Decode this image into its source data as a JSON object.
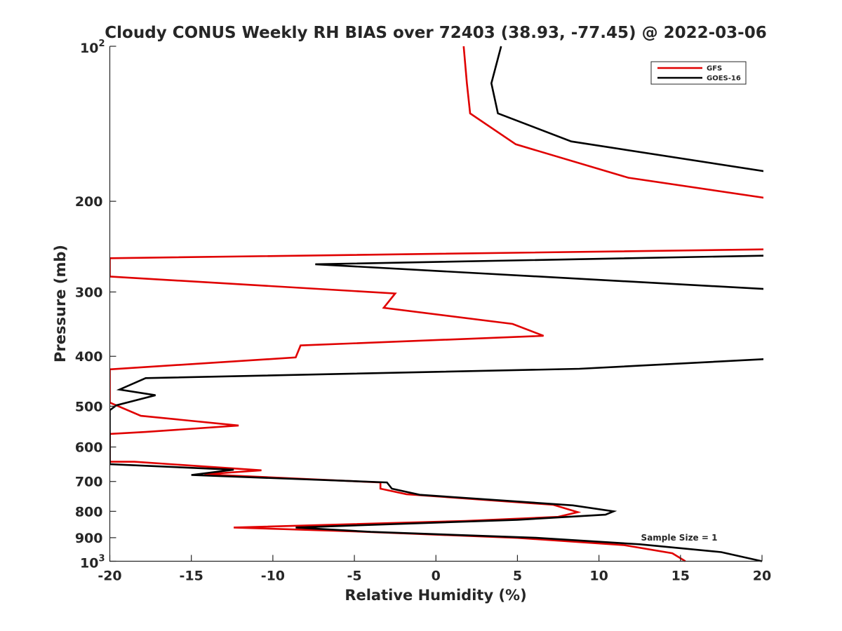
{
  "chart_data": {
    "type": "line",
    "title": "Cloudy CONUS Weekly RH BIAS over 72403 (38.93, -77.45) @ 2022-03-06",
    "xlabel": "Relative Humidity (%)",
    "ylabel": "Pressure (mb)",
    "xlim": [
      -20,
      20
    ],
    "ylim": [
      100,
      1000
    ],
    "y_scale": "log",
    "y_reversed": true,
    "grid": false,
    "legend_placement": "top-right",
    "x_ticks": [
      "-20",
      "-15",
      "-10",
      "-5",
      "0",
      "5",
      "10",
      "15",
      "20"
    ],
    "y_ticks": [
      {
        "value": 100,
        "base": "10",
        "exp": "2"
      },
      {
        "value": 200,
        "label": "200"
      },
      {
        "value": 300,
        "label": "300"
      },
      {
        "value": 400,
        "label": "400"
      },
      {
        "value": 500,
        "label": "500"
      },
      {
        "value": 600,
        "label": "600"
      },
      {
        "value": 700,
        "label": "700"
      },
      {
        "value": 800,
        "label": "800"
      },
      {
        "value": 900,
        "label": "900"
      },
      {
        "value": 1000,
        "base": "10",
        "exp": "3"
      }
    ],
    "annotation": "Sample Size = 1",
    "series": [
      {
        "name": "GFS",
        "color": "#e00000",
        "points": [
          [
            1.7,
            100
          ],
          [
            1.9,
            118
          ],
          [
            2.1,
            135
          ],
          [
            4.9,
            155
          ],
          [
            11.8,
            180
          ],
          [
            20.2,
            197
          ],
          [
            20.2,
            248
          ],
          [
            -20,
            258
          ],
          [
            -20,
            280
          ],
          [
            -2.5,
            302
          ],
          [
            -3.2,
            322
          ],
          [
            4.7,
            346
          ],
          [
            6.6,
            365
          ],
          [
            -8.3,
            381
          ],
          [
            -8.6,
            402
          ],
          [
            -20,
            424
          ],
          [
            -20,
            492
          ],
          [
            -18.1,
            522
          ],
          [
            -12.1,
            545
          ],
          [
            -17.8,
            561
          ],
          [
            -20,
            566
          ],
          [
            -20,
            641
          ],
          [
            -18.5,
            641
          ],
          [
            -10.7,
            666
          ],
          [
            -14.2,
            678
          ],
          [
            -3.4,
            703
          ],
          [
            -3.4,
            723
          ],
          [
            -1.8,
            741
          ],
          [
            7.2,
            777
          ],
          [
            8.7,
            803
          ],
          [
            7.5,
            820
          ],
          [
            1.8,
            835
          ],
          [
            -12.4,
            860
          ],
          [
            -5,
            875
          ],
          [
            5,
            901
          ],
          [
            11.5,
            930
          ],
          [
            14.5,
            965
          ],
          [
            15.3,
            1000
          ]
        ]
      },
      {
        "name": "GOES-16",
        "color": "#000000",
        "points": [
          [
            4.0,
            100
          ],
          [
            3.4,
            118
          ],
          [
            3.8,
            135
          ],
          [
            8.3,
            153
          ],
          [
            20.2,
            175
          ],
          [
            20.2,
            255
          ],
          [
            -7.4,
            265
          ],
          [
            20.2,
            296
          ],
          [
            20.2,
            405
          ],
          [
            8.8,
            423
          ],
          [
            -17.8,
            441
          ],
          [
            -19.4,
            464
          ],
          [
            -17.2,
            476
          ],
          [
            -19.6,
            498
          ],
          [
            -20,
            509
          ],
          [
            -20,
            648
          ],
          [
            -12.4,
            664
          ],
          [
            -15,
            680
          ],
          [
            -3.0,
            703
          ],
          [
            -2.7,
            723
          ],
          [
            -1.0,
            743
          ],
          [
            8.4,
            779
          ],
          [
            10.9,
            800
          ],
          [
            10.4,
            812
          ],
          [
            5,
            831
          ],
          [
            -8.6,
            860
          ],
          [
            -4.0,
            877
          ],
          [
            6,
            900
          ],
          [
            12.5,
            927
          ],
          [
            17.5,
            960
          ],
          [
            20,
            1000
          ]
        ]
      }
    ]
  }
}
